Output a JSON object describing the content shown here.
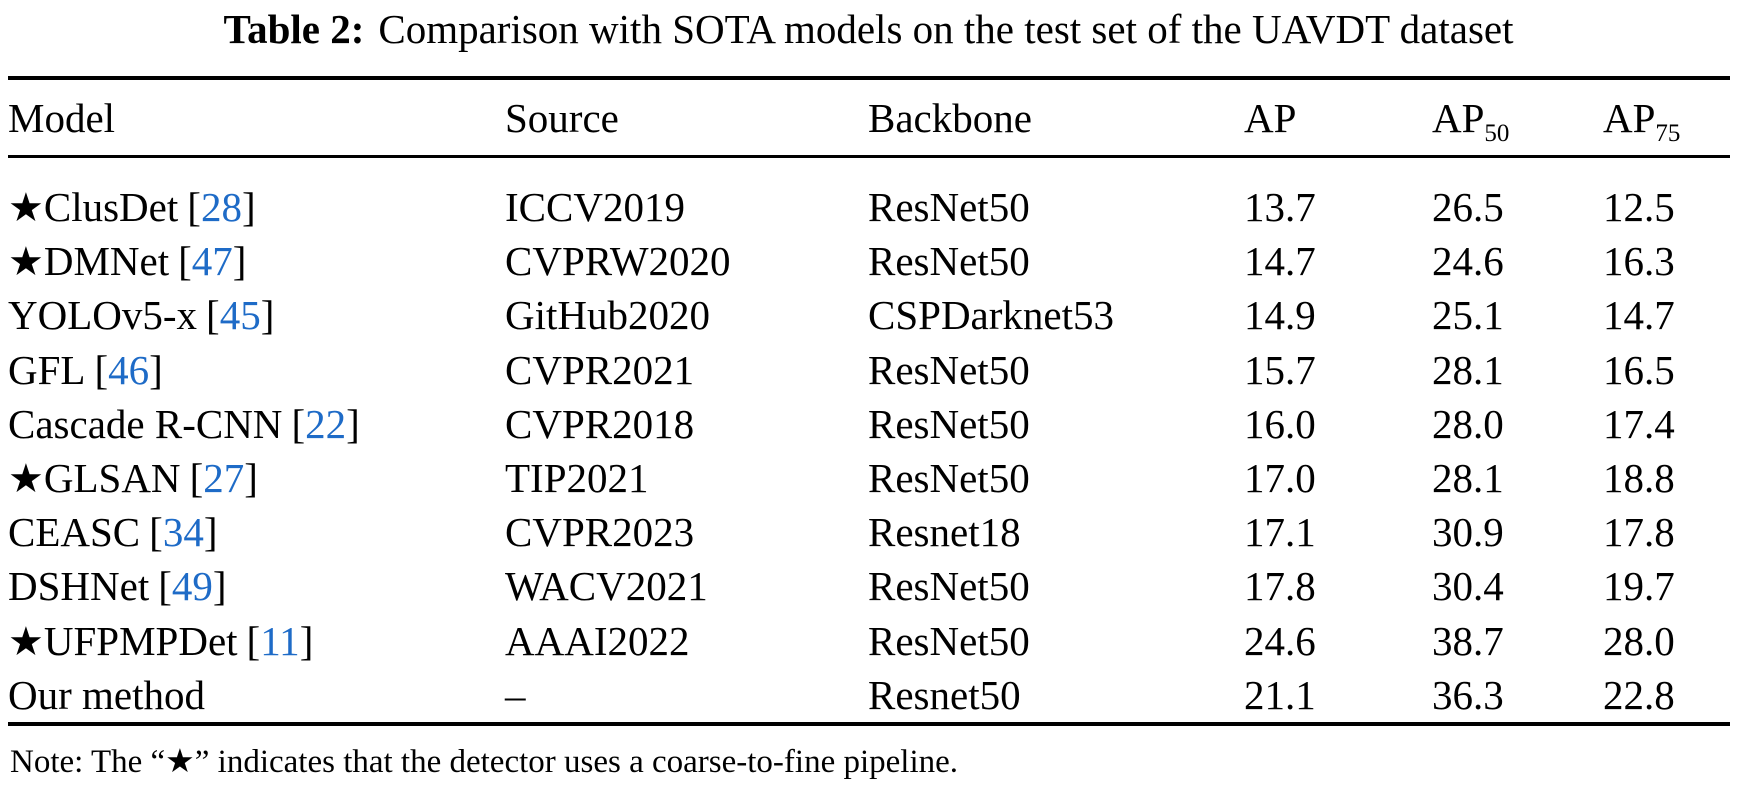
{
  "title": {
    "label": "Table 2:",
    "text": "Comparison with SOTA models on the test set of the UAVDT dataset"
  },
  "symbols": {
    "star": "★"
  },
  "colors": {
    "background": "#ffffff",
    "text": "#000000",
    "citation": "#1e6bc7",
    "rule": "#000000"
  },
  "table": {
    "header": {
      "model": "Model",
      "source": "Source",
      "backbone": "Backbone",
      "ap": {
        "base": "AP",
        "sub": ""
      },
      "ap50": {
        "base": "AP",
        "sub": "50"
      },
      "ap75": {
        "base": "AP",
        "sub": "75"
      }
    },
    "rows": [
      {
        "star": true,
        "model": "ClusDet",
        "cite": "28",
        "source": "ICCV2019",
        "backbone": "ResNet50",
        "ap": "13.7",
        "ap50": "26.5",
        "ap75": "12.5"
      },
      {
        "star": true,
        "model": "DMNet",
        "cite": "47",
        "source": "CVPRW2020",
        "backbone": "ResNet50",
        "ap": "14.7",
        "ap50": "24.6",
        "ap75": "16.3"
      },
      {
        "star": false,
        "model": "YOLOv5-x",
        "cite": "45",
        "source": "GitHub2020",
        "backbone": "CSPDarknet53",
        "ap": "14.9",
        "ap50": "25.1",
        "ap75": "14.7"
      },
      {
        "star": false,
        "model": "GFL",
        "cite": "46",
        "source": "CVPR2021",
        "backbone": "ResNet50",
        "ap": "15.7",
        "ap50": "28.1",
        "ap75": "16.5"
      },
      {
        "star": false,
        "model": "Cascade R-CNN",
        "cite": "22",
        "source": "CVPR2018",
        "backbone": "ResNet50",
        "ap": "16.0",
        "ap50": "28.0",
        "ap75": "17.4"
      },
      {
        "star": true,
        "model": "GLSAN",
        "cite": "27",
        "source": "TIP2021",
        "backbone": "ResNet50",
        "ap": "17.0",
        "ap50": "28.1",
        "ap75": "18.8"
      },
      {
        "star": false,
        "model": "CEASC",
        "cite": "34",
        "source": "CVPR2023",
        "backbone": "Resnet18",
        "ap": "17.1",
        "ap50": "30.9",
        "ap75": "17.8"
      },
      {
        "star": false,
        "model": "DSHNet",
        "cite": "49",
        "source": "WACV2021",
        "backbone": "ResNet50",
        "ap": "17.8",
        "ap50": "30.4",
        "ap75": "19.7"
      },
      {
        "star": true,
        "model": "UFPMPDet",
        "cite": "11",
        "source": "AAAI2022",
        "backbone": "ResNet50",
        "ap": "24.6",
        "ap50": "38.7",
        "ap75": "28.0"
      },
      {
        "star": false,
        "model": "Our method",
        "cite": null,
        "source": "–",
        "backbone": "Resnet50",
        "ap": "21.1",
        "ap50": "36.3",
        "ap75": "22.8"
      }
    ]
  },
  "note": "Note: The “★” indicates that the detector uses a coarse-to-fine pipeline."
}
